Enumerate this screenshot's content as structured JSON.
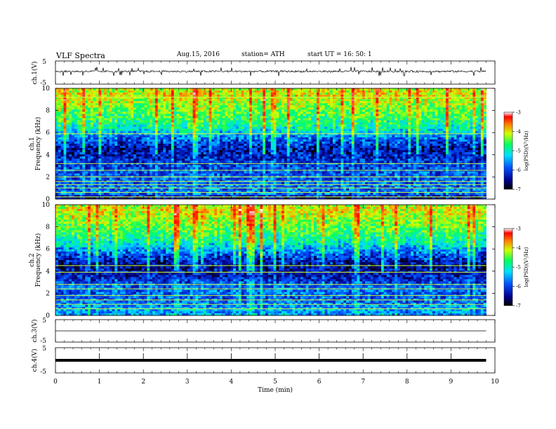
{
  "header": {
    "title": "VLF Spectra",
    "date": "Aug.15, 2016",
    "station": "station= ATH",
    "start": "start UT =   16: 50: 1"
  },
  "chart_data": [
    {
      "type": "line",
      "panel": "ch1-waveform",
      "ylabel": "ch.1(V)",
      "ylim": [
        -5,
        5
      ],
      "yticks": [
        "5",
        "-5"
      ],
      "x_range_min": [
        0,
        9.8
      ],
      "baseline": 0.5,
      "description_values": "noisy signal near 0.5 V with spikes to about 2 V and -2 V"
    },
    {
      "type": "heatmap",
      "panel": "ch1-spectrogram",
      "ylabel": "ch.1",
      "ylabel2": "Frequency (kHz)",
      "ylim": [
        0,
        10
      ],
      "yticks": [
        "0",
        "2",
        "4",
        "6",
        "8",
        "10"
      ],
      "x_range_min": [
        0,
        9.8
      ],
      "colorbar": {
        "label": "log(PSD)(V²/Hz)",
        "range": [
          -7,
          -3
        ],
        "ticks": [
          "-3",
          "-4",
          "-5",
          "-6",
          "-7"
        ]
      },
      "horizontal_lines_khz": [
        0.2,
        0.6,
        1.0,
        1.3,
        1.6,
        2.0,
        2.6,
        3.2,
        5.9,
        9.2
      ],
      "level_profile": [
        [
          0,
          -7
        ],
        [
          0.5,
          -6.2
        ],
        [
          1.5,
          -6.3
        ],
        [
          2.5,
          -6.3
        ],
        [
          3.5,
          -6.5
        ],
        [
          4.5,
          -6.7
        ],
        [
          5.5,
          -6.2
        ],
        [
          6.5,
          -5.5
        ],
        [
          7.5,
          -5.2
        ],
        [
          8.5,
          -4.9
        ],
        [
          9.5,
          -4.6
        ],
        [
          10,
          -4.8
        ]
      ]
    },
    {
      "type": "heatmap",
      "panel": "ch2-spectrogram",
      "ylabel": "ch.2",
      "ylabel2": "Frequency (kHz)",
      "ylim": [
        0,
        10
      ],
      "yticks": [
        "0",
        "2",
        "4",
        "6",
        "8",
        "10"
      ],
      "x_range_min": [
        0,
        9.8
      ],
      "colorbar": {
        "label": "log(PSD)(V²/Hz)",
        "range": [
          -7,
          -3
        ],
        "ticks": [
          "-3",
          "-4",
          "-5",
          "-6",
          "-7"
        ]
      },
      "horizontal_lines_khz": [
        0.6,
        1.0,
        1.4,
        1.8,
        2.4,
        2.8,
        3.9,
        4.5
      ],
      "level_profile": [
        [
          0,
          -6.0
        ],
        [
          0.5,
          -6.0
        ],
        [
          1.5,
          -6.3
        ],
        [
          2.5,
          -6.2
        ],
        [
          3.5,
          -6.6
        ],
        [
          4.5,
          -6.8
        ],
        [
          5.5,
          -6.3
        ],
        [
          6.5,
          -5.6
        ],
        [
          7.5,
          -5.2
        ],
        [
          8.5,
          -4.9
        ],
        [
          9.5,
          -4.6
        ],
        [
          10,
          -4.8
        ]
      ]
    },
    {
      "type": "line",
      "panel": "ch3-waveform",
      "ylabel": "ch.3(V)",
      "ylim": [
        -5,
        5
      ],
      "yticks": [
        "5",
        "-5"
      ],
      "x_range_min": [
        0,
        9.8
      ],
      "baseline": 0
    },
    {
      "type": "line",
      "panel": "ch4-waveform",
      "ylabel": "ch.4(V)",
      "ylim": [
        -5,
        5
      ],
      "yticks": [
        "5",
        "-5"
      ],
      "x_range_min": [
        0,
        9.8
      ],
      "baseline": 0,
      "xlabel": "Time (min)",
      "xlim": [
        0,
        10
      ],
      "xticks": [
        "0",
        "1",
        "2",
        "3",
        "4",
        "5",
        "6",
        "7",
        "8",
        "9",
        "10"
      ],
      "pulse_minutes": [
        1,
        2,
        3,
        4,
        5,
        6,
        7,
        8,
        9
      ]
    }
  ]
}
